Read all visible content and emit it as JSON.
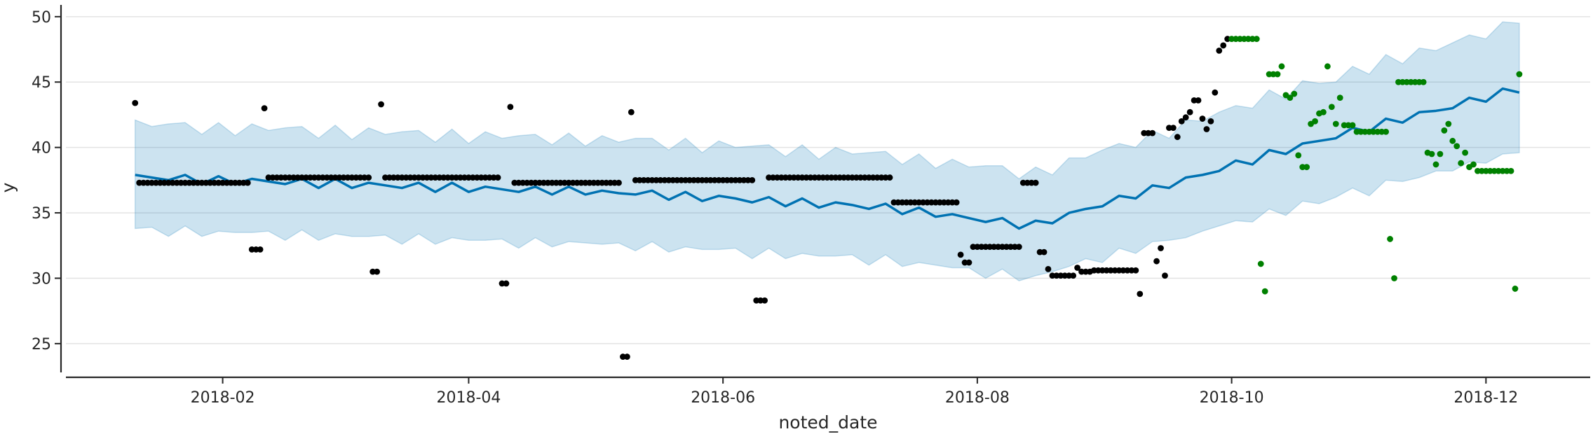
{
  "chart_data": {
    "type": "line",
    "xlabel": "noted_date",
    "ylabel": "y",
    "xlim": [
      -6.6,
      359
    ],
    "ylim": [
      22.8,
      50.9
    ],
    "xticks": [
      {
        "value": 31,
        "label": "2018-02"
      },
      {
        "value": 90,
        "label": "2018-04"
      },
      {
        "value": 151,
        "label": "2018-06"
      },
      {
        "value": 212,
        "label": "2018-08"
      },
      {
        "value": 273,
        "label": "2018-10"
      },
      {
        "value": 334,
        "label": "2018-12"
      }
    ],
    "yticks": [
      25,
      30,
      35,
      40,
      45,
      50
    ],
    "grid": true,
    "forecast": {
      "color": "#0072b2",
      "band_opacity": 0.2,
      "x": [
        10,
        14,
        18,
        22,
        26,
        30,
        34,
        38,
        42,
        46,
        50,
        54,
        58,
        62,
        66,
        70,
        74,
        78,
        82,
        86,
        90,
        94,
        98,
        102,
        106,
        110,
        114,
        118,
        122,
        126,
        130,
        134,
        138,
        142,
        146,
        150,
        154,
        158,
        162,
        166,
        170,
        174,
        178,
        182,
        186,
        190,
        194,
        198,
        202,
        206,
        210,
        214,
        218,
        222,
        226,
        230,
        234,
        238,
        242,
        246,
        250,
        254,
        258,
        262,
        266,
        270,
        274,
        278,
        282,
        286,
        290,
        294,
        298,
        302,
        306,
        310,
        314,
        318,
        322,
        326,
        330,
        334,
        338,
        342
      ],
      "values": [
        37.9,
        37.7,
        37.5,
        37.9,
        37.2,
        37.8,
        37.2,
        37.6,
        37.4,
        37.2,
        37.6,
        36.9,
        37.6,
        36.9,
        37.3,
        37.1,
        36.9,
        37.3,
        36.6,
        37.3,
        36.6,
        37.0,
        36.8,
        36.6,
        37.0,
        36.4,
        37.0,
        36.4,
        36.7,
        36.5,
        36.4,
        36.7,
        36.0,
        36.6,
        35.9,
        36.3,
        36.1,
        35.8,
        36.2,
        35.5,
        36.1,
        35.4,
        35.8,
        35.6,
        35.3,
        35.7,
        34.9,
        35.4,
        34.7,
        34.9,
        34.6,
        34.3,
        34.6,
        33.8,
        34.4,
        34.2,
        35.0,
        35.3,
        35.5,
        36.3,
        36.1,
        37.1,
        36.9,
        37.7,
        37.9,
        38.2,
        39.0,
        38.7,
        39.8,
        39.5,
        40.3,
        40.5,
        40.7,
        41.5,
        41.2,
        42.2,
        41.9,
        42.7,
        42.8,
        43.0,
        43.8,
        43.5,
        44.5,
        44.2
      ],
      "upper": [
        42.1,
        41.6,
        41.8,
        41.9,
        41.0,
        41.9,
        40.9,
        41.8,
        41.3,
        41.5,
        41.6,
        40.7,
        41.7,
        40.6,
        41.5,
        41.0,
        41.2,
        41.3,
        40.4,
        41.4,
        40.3,
        41.2,
        40.7,
        40.9,
        41.0,
        40.2,
        41.1,
        40.1,
        40.9,
        40.4,
        40.7,
        40.7,
        39.8,
        40.7,
        39.6,
        40.5,
        40.0,
        40.1,
        40.2,
        39.3,
        40.2,
        39.1,
        40.0,
        39.5,
        39.6,
        39.7,
        38.7,
        39.5,
        38.4,
        39.1,
        38.5,
        38.6,
        38.6,
        37.6,
        38.5,
        37.9,
        39.2,
        39.2,
        39.8,
        40.3,
        40.0,
        41.3,
        40.7,
        42.1,
        42.0,
        42.7,
        43.2,
        43.0,
        44.4,
        43.7,
        45.1,
        44.9,
        45.0,
        46.2,
        45.6,
        47.1,
        46.4,
        47.6,
        47.4,
        48.0,
        48.6,
        48.3,
        49.6,
        49.5
      ],
      "lower": [
        33.8,
        33.9,
        33.2,
        34.0,
        33.2,
        33.6,
        33.5,
        33.5,
        33.6,
        32.9,
        33.7,
        32.9,
        33.4,
        33.2,
        33.2,
        33.3,
        32.6,
        33.4,
        32.6,
        33.1,
        32.9,
        32.9,
        33.0,
        32.3,
        33.1,
        32.4,
        32.8,
        32.7,
        32.6,
        32.7,
        32.1,
        32.8,
        32.0,
        32.4,
        32.2,
        32.2,
        32.3,
        31.5,
        32.3,
        31.5,
        31.9,
        31.7,
        31.7,
        31.8,
        31.0,
        31.8,
        30.9,
        31.2,
        31.0,
        30.8,
        30.8,
        30.0,
        30.7,
        29.8,
        30.2,
        30.5,
        30.9,
        31.5,
        31.2,
        32.3,
        31.9,
        32.8,
        32.9,
        33.1,
        33.6,
        34.0,
        34.4,
        34.3,
        35.3,
        34.8,
        35.9,
        35.7,
        36.2,
        36.9,
        36.3,
        37.5,
        37.4,
        37.7,
        38.2,
        38.2,
        38.9,
        38.8,
        39.5,
        39.6
      ]
    },
    "points": [
      {
        "color": "#000000",
        "x": [
          10,
          11,
          12,
          13,
          14,
          15,
          16,
          17,
          18,
          19,
          20,
          21,
          22,
          23,
          24,
          25,
          26,
          27,
          28,
          29,
          30,
          31,
          32,
          33,
          34,
          35,
          36,
          37,
          38,
          39,
          40,
          41,
          42,
          43,
          44,
          45,
          46,
          47,
          48,
          49,
          50,
          51,
          52,
          53,
          54,
          55,
          56,
          57,
          58,
          59,
          60,
          61,
          62,
          63,
          64,
          65,
          66,
          67,
          68,
          69,
          70,
          71,
          72,
          73,
          74,
          75,
          76,
          77,
          78,
          79,
          80,
          81,
          82,
          83,
          84,
          85,
          86,
          87,
          88,
          89,
          90,
          91,
          92,
          93,
          94,
          95,
          96,
          97,
          98,
          99,
          100,
          101,
          102,
          103,
          104,
          105,
          106,
          107,
          108,
          109,
          110,
          111,
          112,
          113,
          114,
          115,
          116,
          117,
          118,
          119,
          120,
          121,
          122,
          123,
          124,
          125,
          126,
          127,
          128,
          129,
          130,
          131,
          132,
          133,
          134,
          135,
          136,
          137,
          138,
          139,
          140,
          141,
          142,
          143,
          144,
          145,
          146,
          147,
          148,
          149,
          150,
          151,
          152,
          153,
          154,
          155,
          156,
          157,
          158,
          159,
          160,
          161,
          162,
          163,
          164,
          165,
          166,
          167,
          168,
          169,
          170,
          171,
          172,
          173,
          174,
          175,
          176,
          177,
          178,
          179,
          180,
          181,
          182,
          183,
          184,
          185,
          186,
          187,
          188,
          189,
          190,
          191,
          192,
          193,
          194,
          195,
          196,
          197,
          198,
          199,
          200,
          201,
          202,
          203,
          204,
          205,
          206,
          207,
          208,
          209,
          210,
          211,
          212,
          213,
          214,
          215,
          216,
          217,
          218,
          219,
          220,
          221,
          222,
          223,
          224,
          225,
          226,
          227,
          228,
          229,
          230,
          231,
          232,
          233,
          234,
          235,
          236,
          237,
          238,
          239,
          240,
          241,
          242,
          243,
          244,
          245,
          246,
          247,
          248,
          249,
          250,
          251,
          252,
          253,
          254,
          255,
          256,
          257,
          258,
          259,
          260,
          261,
          262,
          263,
          264,
          265,
          266,
          267,
          268,
          269,
          270,
          271,
          272
        ],
        "values": [
          43.4,
          37.3,
          37.3,
          37.3,
          37.3,
          37.3,
          37.3,
          37.3,
          37.3,
          37.3,
          37.3,
          37.3,
          37.3,
          37.3,
          37.3,
          37.3,
          37.3,
          37.3,
          37.3,
          37.3,
          37.3,
          37.3,
          37.3,
          37.3,
          37.3,
          37.3,
          37.3,
          37.3,
          32.2,
          32.2,
          32.2,
          43.0,
          37.7,
          37.7,
          37.7,
          37.7,
          37.7,
          37.7,
          37.7,
          37.7,
          37.7,
          37.7,
          37.7,
          37.7,
          37.7,
          37.7,
          37.7,
          37.7,
          37.7,
          37.7,
          37.7,
          37.7,
          37.7,
          37.7,
          37.7,
          37.7,
          37.7,
          30.5,
          30.5,
          43.3,
          37.7,
          37.7,
          37.7,
          37.7,
          37.7,
          37.7,
          37.7,
          37.7,
          37.7,
          37.7,
          37.7,
          37.7,
          37.7,
          37.7,
          37.7,
          37.7,
          37.7,
          37.7,
          37.7,
          37.7,
          37.7,
          37.7,
          37.7,
          37.7,
          37.7,
          37.7,
          37.7,
          37.7,
          29.6,
          29.6,
          43.1,
          37.3,
          37.3,
          37.3,
          37.3,
          37.3,
          37.3,
          37.3,
          37.3,
          37.3,
          37.3,
          37.3,
          37.3,
          37.3,
          37.3,
          37.3,
          37.3,
          37.3,
          37.3,
          37.3,
          37.3,
          37.3,
          37.3,
          37.3,
          37.3,
          37.3,
          37.3,
          24.0,
          24.0,
          42.7,
          37.5,
          37.5,
          37.5,
          37.5,
          37.5,
          37.5,
          37.5,
          37.5,
          37.5,
          37.5,
          37.5,
          37.5,
          37.5,
          37.5,
          37.5,
          37.5,
          37.5,
          37.5,
          37.5,
          37.5,
          37.5,
          37.5,
          37.5,
          37.5,
          37.5,
          37.5,
          37.5,
          37.5,
          37.5,
          28.3,
          28.3,
          28.3,
          37.7,
          37.7,
          37.7,
          37.7,
          37.7,
          37.7,
          37.7,
          37.7,
          37.7,
          37.7,
          37.7,
          37.7,
          37.7,
          37.7,
          37.7,
          37.7,
          37.7,
          37.7,
          37.7,
          37.7,
          37.7,
          37.7,
          37.7,
          37.7,
          37.7,
          37.7,
          37.7,
          37.7,
          37.7,
          37.7,
          35.8,
          35.8,
          35.8,
          35.8,
          35.8,
          35.8,
          35.8,
          35.8,
          35.8,
          35.8,
          35.8,
          35.8,
          35.8,
          35.8,
          35.8,
          35.8,
          31.8,
          31.2,
          31.2,
          32.4,
          32.4,
          32.4,
          32.4,
          32.4,
          32.4,
          32.4,
          32.4,
          32.4,
          32.4,
          32.4,
          32.4,
          37.3,
          37.3,
          37.3,
          37.3,
          32.0,
          32.0,
          30.7,
          30.2,
          30.2,
          30.2,
          30.2,
          30.2,
          30.2,
          30.8,
          30.5,
          30.5,
          30.5,
          30.6,
          30.6,
          30.6,
          30.6,
          30.6,
          30.6,
          30.6,
          30.6,
          30.6,
          30.6,
          30.6,
          28.8,
          41.1,
          41.1,
          41.1,
          31.3,
          32.3,
          30.2,
          41.5,
          41.5,
          40.8,
          42.0,
          42.3,
          42.7,
          43.6,
          43.6,
          42.2,
          41.4,
          42.0,
          44.2,
          47.4,
          47.8,
          48.3
        ]
      },
      {
        "color": "#008000",
        "x": [
          273,
          274,
          275,
          276,
          277,
          278,
          279,
          280,
          281,
          282,
          283,
          284,
          285,
          286,
          287,
          288,
          289,
          290,
          291,
          292,
          293,
          294,
          295,
          296,
          297,
          298,
          299,
          300,
          301,
          302,
          303,
          304,
          305,
          306,
          307,
          308,
          309,
          310,
          311,
          312,
          313,
          314,
          315,
          316,
          317,
          318,
          319,
          320,
          321,
          322,
          323,
          324,
          325,
          326,
          327,
          328,
          329,
          330,
          331,
          332,
          333,
          334,
          335,
          336,
          337,
          338,
          339,
          340,
          341,
          342
        ],
        "values": [
          48.3,
          48.3,
          48.3,
          48.3,
          48.3,
          48.3,
          48.3,
          31.1,
          29.0,
          45.6,
          45.6,
          45.6,
          46.2,
          44.0,
          43.8,
          44.1,
          39.4,
          38.5,
          38.5,
          41.8,
          42.0,
          42.6,
          42.7,
          46.2,
          43.1,
          41.8,
          43.8,
          41.7,
          41.7,
          41.7,
          41.2,
          41.2,
          41.2,
          41.2,
          41.2,
          41.2,
          41.2,
          41.2,
          33.0,
          30.0,
          45.0,
          45.0,
          45.0,
          45.0,
          45.0,
          45.0,
          45.0,
          39.6,
          39.5,
          38.7,
          39.5,
          41.3,
          41.8,
          40.5,
          40.1,
          38.8,
          39.6,
          38.5,
          38.7,
          38.2,
          38.2,
          38.2,
          38.2,
          38.2,
          38.2,
          38.2,
          38.2,
          38.2,
          29.2,
          45.6
        ]
      }
    ]
  }
}
